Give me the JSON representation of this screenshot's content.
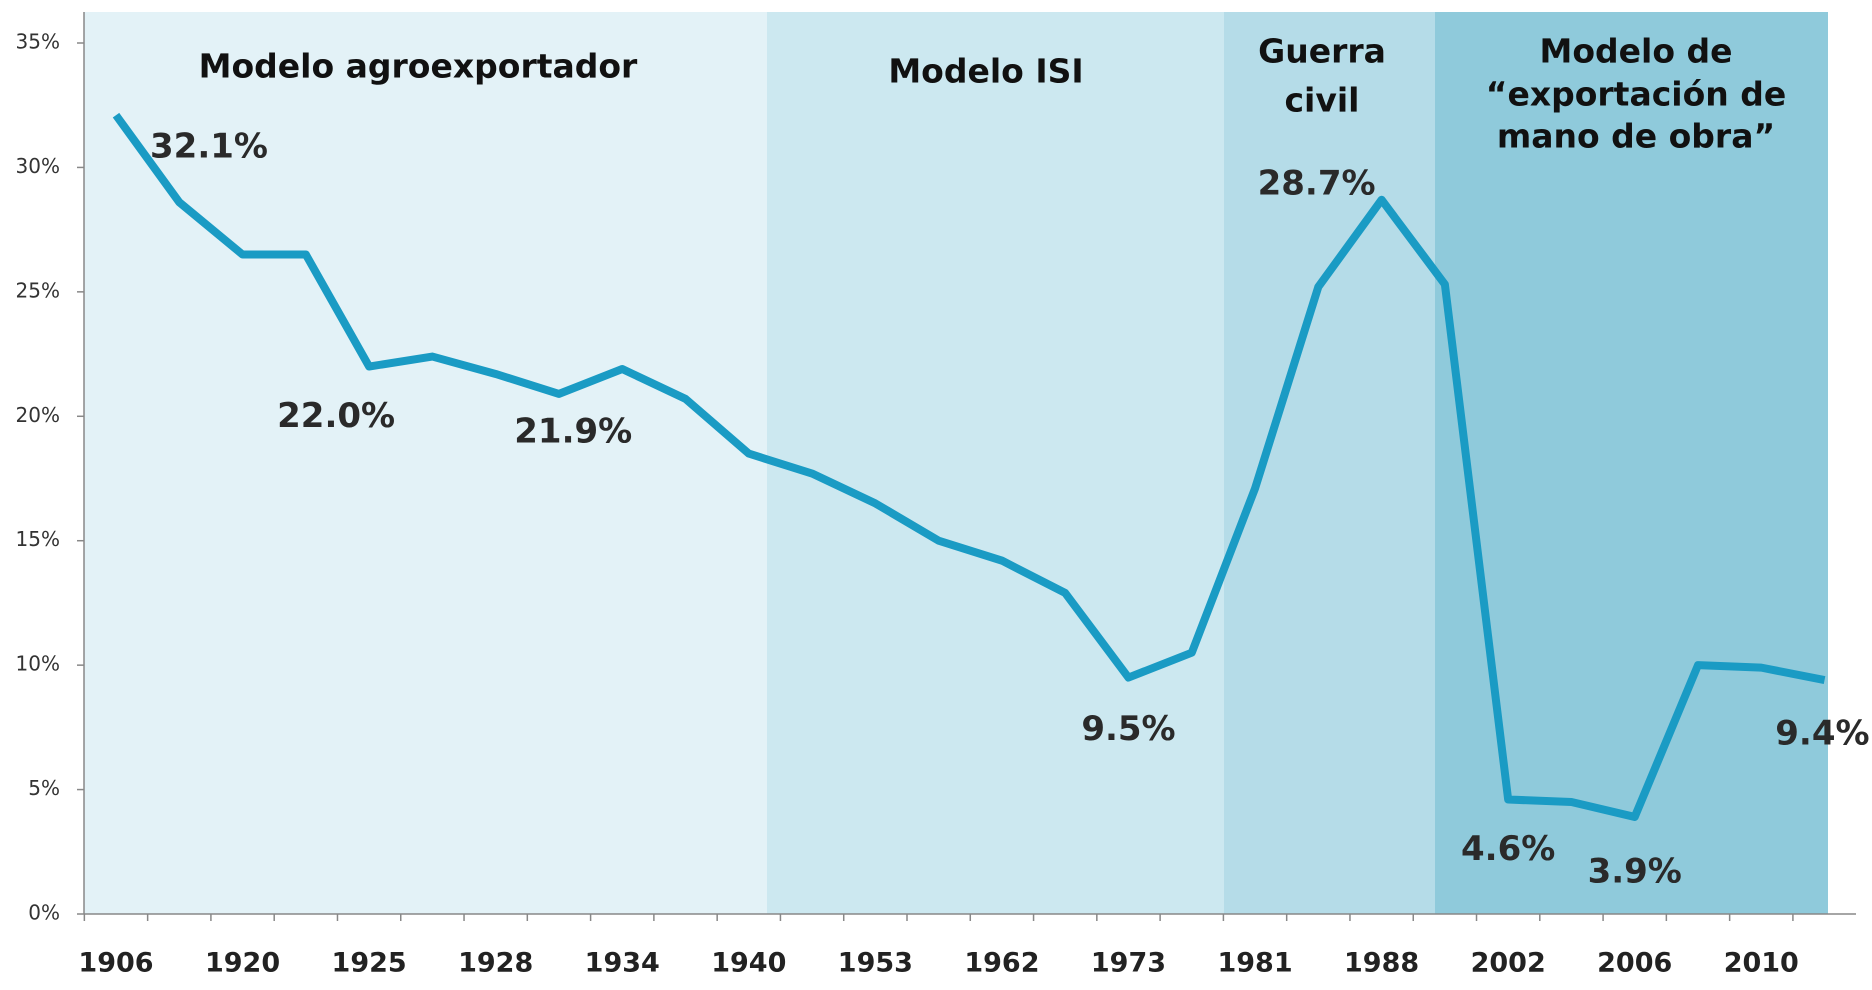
{
  "chart_data": {
    "type": "line",
    "categories": [
      "1906",
      null,
      "1920",
      null,
      "1925",
      null,
      "1928",
      null,
      "1934",
      null,
      "1940",
      null,
      "1953",
      null,
      "1962",
      null,
      "1973",
      null,
      "1981",
      null,
      "1988",
      null,
      "2002",
      null,
      "2006",
      null,
      "2010",
      null
    ],
    "series": [
      {
        "name": null,
        "color": "#1a9bc4",
        "values": [
          32.1,
          28.6,
          26.5,
          26.5,
          22.0,
          22.4,
          21.7,
          20.9,
          21.9,
          20.7,
          18.5,
          17.7,
          16.5,
          15.0,
          14.2,
          12.9,
          9.5,
          10.5,
          17.1,
          25.2,
          28.7,
          25.3,
          4.6,
          4.5,
          3.9,
          10.0,
          9.9,
          9.4
        ],
        "value_labels": [
          "32.1%",
          null,
          null,
          null,
          "22.0%",
          null,
          null,
          null,
          "21.9%",
          null,
          null,
          null,
          null,
          null,
          null,
          null,
          "9.5%",
          null,
          null,
          null,
          "28.7%",
          null,
          "4.6%",
          null,
          "3.9%",
          null,
          null,
          "9.4%"
        ]
      }
    ],
    "ylim": [
      0,
      35
    ],
    "yticks": [
      {
        "value": 0,
        "label": "0%"
      },
      {
        "value": 5,
        "label": "5%"
      },
      {
        "value": 10,
        "label": "10%"
      },
      {
        "value": 15,
        "label": "15%"
      },
      {
        "value": 20,
        "label": "20%"
      },
      {
        "value": 25,
        "label": "25%"
      },
      {
        "value": 30,
        "label": "30%"
      },
      {
        "value": 35,
        "label": "35%"
      }
    ],
    "regions": [
      {
        "lines": [
          "Modelo agroexportador"
        ],
        "color": "#e3f2f7"
      },
      {
        "lines": [
          "Modelo ISI"
        ],
        "color": "#cce8f0"
      },
      {
        "lines": [
          "Guerra",
          "civil"
        ],
        "color": "#b5dce8"
      },
      {
        "lines": [
          "Modelo de",
          "“exportación de",
          "mano de obra”"
        ],
        "color": "#8fcadb"
      }
    ]
  }
}
